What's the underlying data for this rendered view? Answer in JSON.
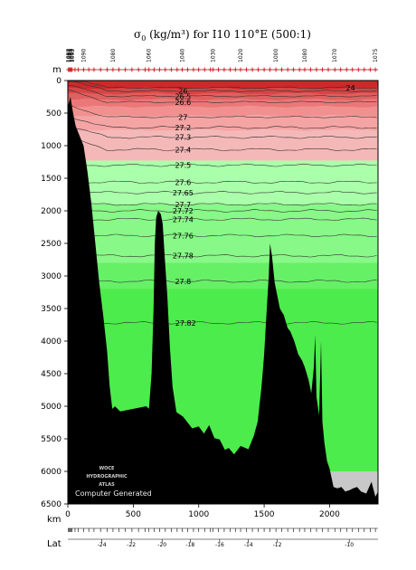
{
  "chart_data": {
    "type": "contour",
    "title_symbol": "σ",
    "title_subscript": "0",
    "title_rest": " (kg/m³) for I10 110°E (500:1)",
    "y_axis_unit": "m",
    "x_axis_unit": "km",
    "lat_axis_label": "Lat",
    "x_ticks": [
      0,
      500,
      1000,
      1500,
      2000
    ],
    "y_ticks": [
      0,
      500,
      1000,
      1500,
      2000,
      2500,
      3000,
      3500,
      4000,
      4500,
      5000,
      5500,
      6000,
      6500
    ],
    "xlim": [
      0,
      2370
    ],
    "ylim": [
      0,
      6500
    ],
    "lat_ticks": [
      {
        "label": "-24",
        "km": 260
      },
      {
        "label": "-22",
        "km": 485
      },
      {
        "label": "-20",
        "km": 720
      },
      {
        "label": "-18",
        "km": 935
      },
      {
        "label": "-16",
        "km": 1160
      },
      {
        "label": "-14",
        "km": 1380
      },
      {
        "label": "-12",
        "km": 1600
      },
      {
        "label": "-10",
        "km": 2150
      }
    ],
    "station_labels": [
      {
        "label": "1098",
        "km": 5
      },
      {
        "label": "1097",
        "km": 12
      },
      {
        "label": "1096",
        "km": 19
      },
      {
        "label": "1094",
        "km": 26
      },
      {
        "label": "1092",
        "km": 33
      },
      {
        "label": "1090",
        "km": 120
      },
      {
        "label": "1080",
        "km": 345
      },
      {
        "label": "1060",
        "km": 620
      },
      {
        "label": "1040",
        "km": 875
      },
      {
        "label": "1030",
        "km": 1110
      },
      {
        "label": "1020",
        "km": 1320
      },
      {
        "label": "1000",
        "km": 1590
      },
      {
        "label": "1080",
        "km": 1810
      },
      {
        "label": "1070",
        "km": 2040
      },
      {
        "label": "1075",
        "km": 2350
      }
    ],
    "station_km": [
      5,
      12,
      19,
      26,
      33,
      55,
      80,
      120,
      160,
      200,
      250,
      300,
      345,
      390,
      440,
      490,
      540,
      590,
      620,
      660,
      700,
      745,
      790,
      835,
      875,
      915,
      960,
      1000,
      1045,
      1090,
      1110,
      1150,
      1195,
      1240,
      1280,
      1320,
      1365,
      1410,
      1455,
      1500,
      1545,
      1590,
      1635,
      1680,
      1725,
      1770,
      1810,
      1855,
      1900,
      1945,
      1990,
      2040,
      2085,
      2130,
      2175,
      2220,
      2265,
      2310,
      2350
    ],
    "density_bands": [
      {
        "from": 0,
        "to": 1230,
        "color": "#f5b8b8"
      },
      {
        "from": 1230,
        "to": 6500,
        "color": "#aaffaa"
      },
      {
        "from": 1900,
        "to": 6500,
        "color": "#88f888"
      },
      {
        "from": 2800,
        "to": 6500,
        "color": "#66f066"
      },
      {
        "from": 3200,
        "to": 6500,
        "color": "#4cec4c"
      }
    ],
    "deep_gray_zone": {
      "from_km": 2000,
      "to_km": 2370,
      "depth": 6000,
      "color": "#c8c8c8"
    },
    "surface_shades": [
      {
        "depth": 120,
        "color": "#cc2a2a"
      },
      {
        "depth": 200,
        "color": "#d64545"
      },
      {
        "depth": 290,
        "color": "#e06060"
      },
      {
        "depth": 400,
        "color": "#ea7878"
      },
      {
        "depth": 540,
        "color": "#f29090"
      },
      {
        "depth": 760,
        "color": "#f5a4a4"
      }
    ],
    "contours": [
      {
        "label": "24",
        "depth": 110,
        "label_km": 2160
      },
      {
        "label": "26",
        "depth": 160,
        "label_km": 880
      },
      {
        "label": "26.5",
        "depth": 240,
        "label_km": 880
      },
      {
        "label": "26.6",
        "depth": 330,
        "label_km": 880
      },
      {
        "label": "27",
        "depth": 560,
        "label_km": 880
      },
      {
        "label": "27.2",
        "depth": 720,
        "label_km": 880
      },
      {
        "label": "27.3",
        "depth": 870,
        "label_km": 880
      },
      {
        "label": "27.4",
        "depth": 1060,
        "label_km": 880
      },
      {
        "label": "27.5",
        "depth": 1300,
        "label_km": 880
      },
      {
        "label": "27.6",
        "depth": 1560,
        "label_km": 880
      },
      {
        "label": "27.65",
        "depth": 1720,
        "label_km": 880
      },
      {
        "label": "27.7",
        "depth": 1900,
        "label_km": 880
      },
      {
        "label": "27.72",
        "depth": 2000,
        "label_km": 880
      },
      {
        "label": "27.74",
        "depth": 2130,
        "label_km": 880
      },
      {
        "label": "27.76",
        "depth": 2380,
        "label_km": 880
      },
      {
        "label": "27.78",
        "depth": 2690,
        "label_km": 880
      },
      {
        "label": "27.8",
        "depth": 3080,
        "label_km": 880
      },
      {
        "label": "27.82",
        "depth": 3720,
        "label_km": 900
      }
    ],
    "bathymetry": [
      [
        0,
        400
      ],
      [
        20,
        250
      ],
      [
        40,
        500
      ],
      [
        60,
        700
      ],
      [
        80,
        800
      ],
      [
        100,
        900
      ],
      [
        120,
        1000
      ],
      [
        150,
        1400
      ],
      [
        180,
        1900
      ],
      [
        210,
        2500
      ],
      [
        240,
        3100
      ],
      [
        270,
        3600
      ],
      [
        300,
        4150
      ],
      [
        320,
        4700
      ],
      [
        340,
        5000
      ],
      [
        360,
        5040
      ],
      [
        400,
        5040
      ],
      [
        600,
        5040
      ],
      [
        620,
        5000
      ],
      [
        640,
        4500
      ],
      [
        655,
        3500
      ],
      [
        665,
        2500
      ],
      [
        675,
        2100
      ],
      [
        690,
        2000
      ],
      [
        710,
        2050
      ],
      [
        725,
        2200
      ],
      [
        740,
        2700
      ],
      [
        760,
        3300
      ],
      [
        780,
        4100
      ],
      [
        800,
        4700
      ],
      [
        830,
        5050
      ],
      [
        880,
        5200
      ],
      [
        950,
        5300
      ],
      [
        1000,
        5350
      ],
      [
        1040,
        5380
      ],
      [
        1080,
        5330
      ],
      [
        1120,
        5450
      ],
      [
        1160,
        5550
      ],
      [
        1200,
        5630
      ],
      [
        1230,
        5680
      ],
      [
        1270,
        5700
      ],
      [
        1320,
        5650
      ],
      [
        1380,
        5620
      ],
      [
        1420,
        5500
      ],
      [
        1450,
        5200
      ],
      [
        1480,
        4700
      ],
      [
        1500,
        4200
      ],
      [
        1520,
        3500
      ],
      [
        1535,
        3000
      ],
      [
        1545,
        2500
      ],
      [
        1560,
        2700
      ],
      [
        1580,
        3100
      ],
      [
        1600,
        3300
      ],
      [
        1620,
        3500
      ],
      [
        1650,
        3600
      ],
      [
        1680,
        3800
      ],
      [
        1700,
        3850
      ],
      [
        1730,
        4000
      ],
      [
        1760,
        4200
      ],
      [
        1790,
        4300
      ],
      [
        1810,
        4400
      ],
      [
        1840,
        4600
      ],
      [
        1860,
        4800
      ],
      [
        1880,
        4400
      ],
      [
        1890,
        3900
      ],
      [
        1900,
        4900
      ],
      [
        1920,
        5100
      ],
      [
        1935,
        4000
      ],
      [
        1945,
        5200
      ],
      [
        1960,
        5600
      ],
      [
        1980,
        5800
      ],
      [
        2000,
        6000
      ],
      [
        2030,
        6200
      ],
      [
        2060,
        6300
      ],
      [
        2090,
        6200
      ],
      [
        2120,
        6350
      ],
      [
        2150,
        6250
      ],
      [
        2180,
        6300
      ],
      [
        2210,
        6200
      ],
      [
        2240,
        6350
      ],
      [
        2280,
        6300
      ],
      [
        2320,
        6200
      ],
      [
        2350,
        6350
      ],
      [
        2370,
        6350
      ]
    ]
  },
  "watermark": {
    "line1": "WOCE",
    "line2": "HYDROGRAPHIC",
    "line3": "ATLAS",
    "credit": "Computer Generated"
  }
}
